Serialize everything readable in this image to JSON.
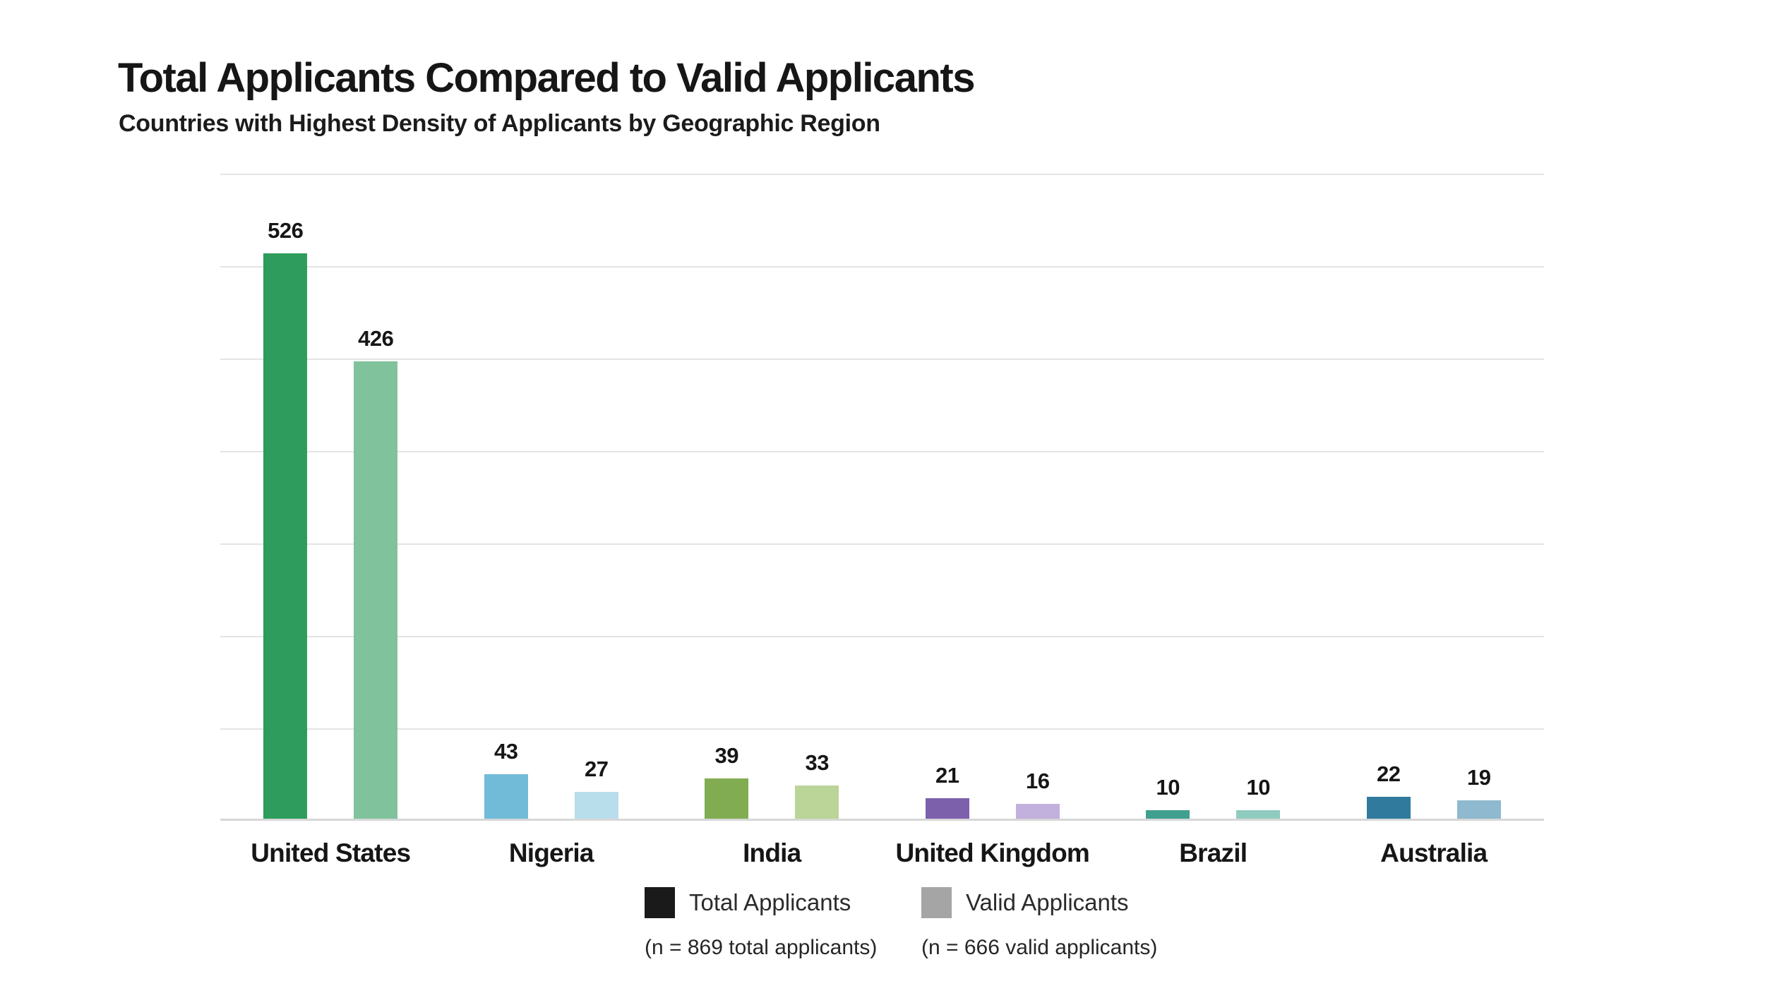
{
  "header": {
    "title": "Total Applicants Compared to Valid Applicants",
    "subtitle": "Countries with Highest Density of Applicants by Geographic Region"
  },
  "chart_data": {
    "type": "bar",
    "title": "Total Applicants Compared to Valid Applicants",
    "subtitle": "Countries with Highest Density of Applicants by Geographic Region",
    "categories": [
      "United States",
      "Nigeria",
      "India",
      "United Kingdom",
      "Brazil",
      "Australia"
    ],
    "series": [
      {
        "name": "Total Applicants",
        "values": [
          526,
          43,
          39,
          21,
          10,
          22
        ]
      },
      {
        "name": "Valid Applicants",
        "values": [
          426,
          27,
          33,
          16,
          10,
          19
        ]
      }
    ],
    "value_labels_shown": true,
    "ylim": [
      0,
      600
    ],
    "gridline_count": 8,
    "grid": true,
    "legend_position": "bottom",
    "bar_colors_total": [
      "#2D9C5C",
      "#71BBD9",
      "#81AC51",
      "#7C60AC",
      "#3FA08F",
      "#2F7A9D"
    ],
    "bar_colors_valid": [
      "#7FC29B",
      "#B8DDEB",
      "#BBD497",
      "#C2B0DD",
      "#8FCBBE",
      "#8FB9CE"
    ],
    "gridline_color": "#E4E4E4",
    "text_color": "#161616"
  },
  "legend": {
    "items": [
      {
        "label": "Total Applicants",
        "note": "(n = 869 total applicants)",
        "swatch_color": "#1A1A1A"
      },
      {
        "label": "Valid Applicants",
        "note": "(n = 666 valid applicants)",
        "swatch_color": "#A5A5A5"
      }
    ]
  }
}
